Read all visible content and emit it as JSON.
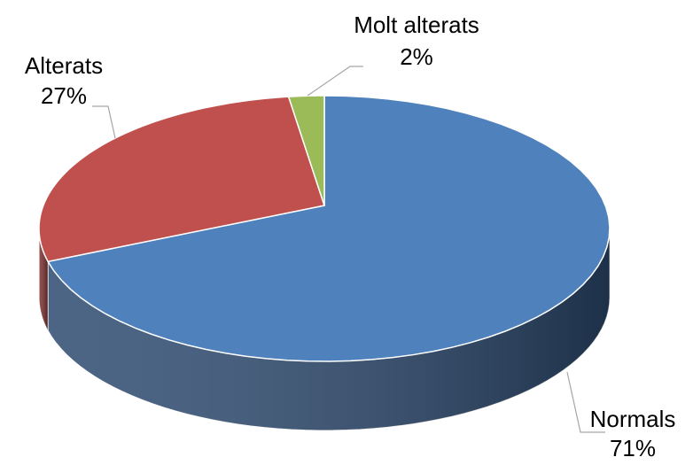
{
  "chart_data": {
    "type": "pie3d",
    "categories": [
      "Normals",
      "Alterats",
      "Molt alterats"
    ],
    "values": [
      71,
      27,
      2
    ],
    "value_labels": [
      "71%",
      "27%",
      "2%"
    ],
    "colors": [
      "#4f81bd",
      "#c0504d",
      "#9bbb59"
    ],
    "side_colors": [
      "#2c4a70",
      "#7a2f2d",
      "#5f7436"
    ]
  }
}
